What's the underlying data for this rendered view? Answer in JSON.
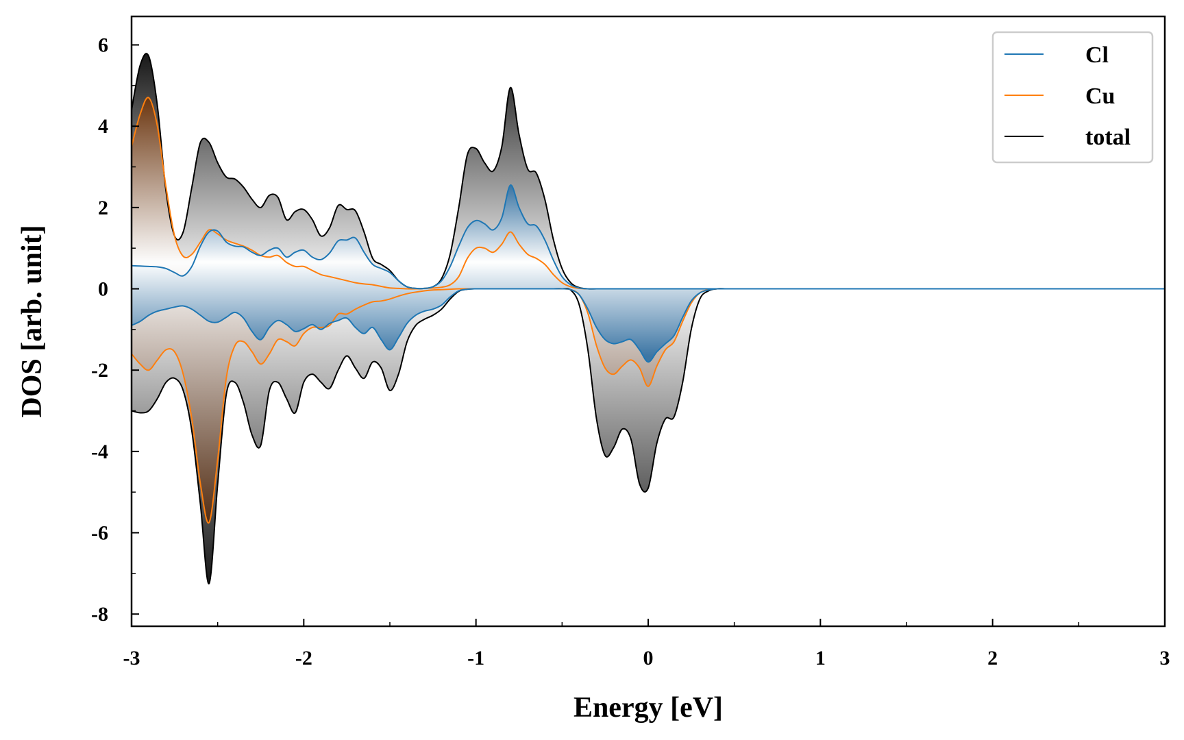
{
  "chart_data": {
    "type": "line",
    "title": "",
    "xlabel": "Energy [eV]",
    "ylabel": "DOS [arb. unit]",
    "xlim": [
      -3,
      3
    ],
    "ylim": [
      -8.3,
      6.7
    ],
    "xticks": [
      -3,
      -2,
      -1,
      0,
      1,
      2,
      3
    ],
    "yticks": [
      -8,
      -6,
      -4,
      -2,
      0,
      2,
      4,
      6
    ],
    "grid": false,
    "legend_position": "top-right",
    "x": [
      -3.0,
      -2.95,
      -2.9,
      -2.85,
      -2.8,
      -2.75,
      -2.7,
      -2.65,
      -2.6,
      -2.55,
      -2.5,
      -2.45,
      -2.4,
      -2.35,
      -2.3,
      -2.25,
      -2.2,
      -2.15,
      -2.1,
      -2.05,
      -2.0,
      -1.95,
      -1.9,
      -1.85,
      -1.8,
      -1.75,
      -1.7,
      -1.65,
      -1.6,
      -1.55,
      -1.5,
      -1.45,
      -1.4,
      -1.35,
      -1.3,
      -1.25,
      -1.2,
      -1.15,
      -1.1,
      -1.05,
      -1.0,
      -0.95,
      -0.9,
      -0.85,
      -0.8,
      -0.75,
      -0.7,
      -0.65,
      -0.6,
      -0.55,
      -0.5,
      -0.45,
      -0.4,
      -0.35,
      -0.3,
      -0.25,
      -0.2,
      -0.15,
      -0.1,
      -0.05,
      0.0,
      0.05,
      0.1,
      0.15,
      0.2,
      0.25,
      0.3,
      0.35,
      0.4,
      0.45,
      0.5,
      1.0,
      1.5,
      2.0,
      2.5,
      3.0
    ],
    "series": [
      {
        "name": "Cl",
        "color": "#1f77b4",
        "up": [
          0.57,
          0.56,
          0.55,
          0.54,
          0.5,
          0.4,
          0.32,
          0.55,
          1.05,
          1.4,
          1.42,
          1.15,
          1.05,
          1.03,
          0.9,
          0.82,
          0.95,
          1.0,
          0.78,
          0.9,
          0.95,
          0.78,
          0.72,
          0.88,
          1.18,
          1.2,
          1.25,
          0.9,
          0.6,
          0.5,
          0.4,
          0.2,
          0.05,
          0.01,
          0.01,
          0.05,
          0.2,
          0.55,
          1.05,
          1.5,
          1.68,
          1.6,
          1.45,
          1.75,
          2.55,
          2.0,
          1.6,
          1.55,
          1.2,
          0.7,
          0.3,
          0.1,
          0.02,
          0,
          0,
          0,
          0,
          0,
          0,
          0,
          0,
          0,
          0,
          0,
          0,
          0,
          0,
          0,
          0,
          0,
          0,
          0,
          0,
          0,
          0,
          0
        ],
        "down": [
          -0.9,
          -0.8,
          -0.65,
          -0.55,
          -0.5,
          -0.45,
          -0.42,
          -0.5,
          -0.65,
          -0.8,
          -0.82,
          -0.7,
          -0.58,
          -0.72,
          -1.05,
          -1.25,
          -0.95,
          -0.78,
          -0.88,
          -1.05,
          -0.98,
          -0.88,
          -1.0,
          -0.85,
          -0.78,
          -0.72,
          -0.95,
          -1.1,
          -0.95,
          -1.25,
          -1.5,
          -1.2,
          -0.85,
          -0.65,
          -0.55,
          -0.5,
          -0.4,
          -0.2,
          -0.05,
          -0.01,
          0,
          0,
          0,
          0,
          0,
          0,
          0,
          0,
          0,
          0,
          0,
          -0.02,
          -0.15,
          -0.5,
          -0.95,
          -1.25,
          -1.35,
          -1.3,
          -1.25,
          -1.5,
          -1.8,
          -1.55,
          -1.35,
          -1.15,
          -0.7,
          -0.3,
          -0.1,
          -0.03,
          0,
          0,
          0,
          0,
          0,
          0,
          0,
          0
        ]
      },
      {
        "name": "Cu",
        "color": "#ff7f0e",
        "up": [
          3.5,
          4.3,
          4.7,
          4.0,
          2.5,
          1.3,
          0.8,
          0.85,
          1.15,
          1.45,
          1.35,
          1.2,
          1.12,
          1.05,
          0.95,
          0.82,
          0.78,
          0.82,
          0.65,
          0.55,
          0.55,
          0.45,
          0.35,
          0.3,
          0.25,
          0.2,
          0.15,
          0.12,
          0.1,
          0.06,
          0.02,
          0.01,
          0.0,
          0,
          0.01,
          0.02,
          0.04,
          0.1,
          0.3,
          0.75,
          1.0,
          1.0,
          0.9,
          1.1,
          1.4,
          1.1,
          0.85,
          0.75,
          0.6,
          0.35,
          0.15,
          0.05,
          0.01,
          0,
          0,
          0,
          0,
          0,
          0,
          0,
          0,
          0,
          0,
          0,
          0,
          0,
          0,
          0,
          0,
          0,
          0,
          0,
          0,
          0,
          0,
          0
        ],
        "down": [
          -1.6,
          -1.85,
          -2.0,
          -1.75,
          -1.5,
          -1.55,
          -2.1,
          -3.2,
          -4.8,
          -5.75,
          -4.2,
          -2.2,
          -1.4,
          -1.3,
          -1.55,
          -1.85,
          -1.6,
          -1.25,
          -1.3,
          -1.4,
          -1.1,
          -0.95,
          -0.95,
          -0.9,
          -0.62,
          -0.62,
          -0.5,
          -0.4,
          -0.32,
          -0.3,
          -0.25,
          -0.18,
          -0.12,
          -0.08,
          -0.05,
          -0.03,
          -0.02,
          -0.01,
          0,
          0,
          0,
          0,
          0,
          0,
          0,
          0,
          0,
          0,
          0,
          0,
          0,
          -0.02,
          -0.15,
          -0.6,
          -1.4,
          -1.95,
          -2.1,
          -1.9,
          -1.75,
          -1.95,
          -2.4,
          -1.9,
          -1.5,
          -1.3,
          -0.8,
          -0.35,
          -0.1,
          -0.02,
          0,
          0,
          0,
          0,
          0,
          0,
          0,
          0
        ]
      },
      {
        "name": "total",
        "color": "#000000",
        "up": [
          4.4,
          5.5,
          5.72,
          4.5,
          2.4,
          1.3,
          1.4,
          2.5,
          3.6,
          3.6,
          3.1,
          2.75,
          2.7,
          2.5,
          2.2,
          2.0,
          2.3,
          2.25,
          1.7,
          1.9,
          1.95,
          1.7,
          1.3,
          1.5,
          2.05,
          1.95,
          1.92,
          1.4,
          0.75,
          0.6,
          0.45,
          0.2,
          0.05,
          0.01,
          0.01,
          0.05,
          0.25,
          0.85,
          2.0,
          3.3,
          3.45,
          3.1,
          2.9,
          3.5,
          4.95,
          3.8,
          2.95,
          2.85,
          2.2,
          1.2,
          0.5,
          0.15,
          0.03,
          0,
          0,
          0,
          0,
          0,
          0,
          0,
          0,
          0,
          0,
          0,
          0,
          0,
          0,
          0,
          0,
          0,
          0,
          0,
          0,
          0,
          0,
          0
        ],
        "down": [
          -3.0,
          -3.05,
          -3.0,
          -2.7,
          -2.3,
          -2.2,
          -2.5,
          -3.5,
          -5.3,
          -7.25,
          -4.8,
          -2.6,
          -2.3,
          -2.8,
          -3.6,
          -3.85,
          -2.5,
          -2.3,
          -2.7,
          -3.05,
          -2.3,
          -2.1,
          -2.3,
          -2.45,
          -2.0,
          -1.65,
          -1.95,
          -2.2,
          -1.8,
          -1.95,
          -2.5,
          -2.1,
          -1.3,
          -0.9,
          -0.75,
          -0.65,
          -0.5,
          -0.25,
          -0.06,
          -0.01,
          0,
          0,
          0,
          0,
          0,
          0,
          0,
          0,
          0,
          0,
          0,
          -0.03,
          -0.4,
          -1.5,
          -3.2,
          -4.1,
          -3.9,
          -3.45,
          -3.7,
          -4.8,
          -4.9,
          -3.8,
          -3.2,
          -3.15,
          -2.3,
          -1.0,
          -0.25,
          -0.05,
          0,
          0,
          0,
          0,
          0,
          0,
          0,
          0
        ]
      }
    ]
  }
}
